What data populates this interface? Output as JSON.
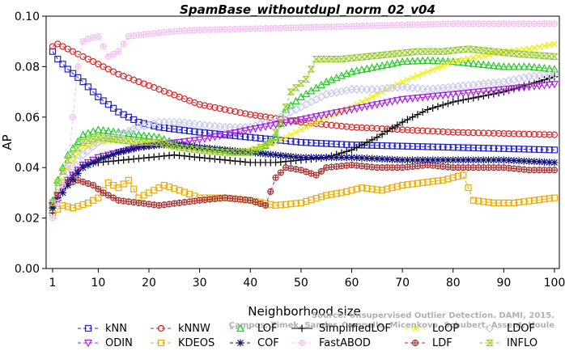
{
  "chart_data": {
    "type": "line",
    "title": "SpamBase_withoutdupl_norm_02_v04",
    "xlabel": "Neighborhood size",
    "ylabel": "AP",
    "xlim": [
      1,
      100
    ],
    "ylim": [
      0,
      0.1
    ],
    "x_ticks": [
      1,
      10,
      20,
      30,
      40,
      50,
      60,
      70,
      80,
      90,
      100
    ],
    "y_ticks": [
      0.0,
      0.02,
      0.04,
      0.06,
      0.08,
      0.1
    ],
    "y_tick_labels": [
      "0.00",
      "0.02",
      "0.04",
      "0.06",
      "0.08",
      "0.10"
    ],
    "grid": false,
    "legend_position": "bottom",
    "watermark_lines": [
      "Source: Unsupervised Outlier Detection. DAMI, 2015.",
      "Campos, Zimek, Sander, Campello, Micenkova, Schubert, Assent, Houle"
    ],
    "series": [
      {
        "name": "kNN",
        "color": "#2222cc",
        "marker": "square",
        "style": "dashed",
        "points": [
          [
            1,
            0.086
          ],
          [
            2,
            0.083
          ],
          [
            4,
            0.079
          ],
          [
            7,
            0.074
          ],
          [
            10,
            0.068
          ],
          [
            14,
            0.062
          ],
          [
            18,
            0.058
          ],
          [
            22,
            0.056
          ],
          [
            26,
            0.055
          ],
          [
            30,
            0.054
          ],
          [
            35,
            0.053
          ],
          [
            40,
            0.052
          ],
          [
            45,
            0.051
          ],
          [
            50,
            0.05
          ],
          [
            55,
            0.0495
          ],
          [
            60,
            0.049
          ],
          [
            70,
            0.0485
          ],
          [
            80,
            0.048
          ],
          [
            90,
            0.0475
          ],
          [
            100,
            0.047
          ]
        ]
      },
      {
        "name": "kNNW",
        "color": "#dd2222",
        "marker": "circle",
        "style": "dashed",
        "points": [
          [
            1,
            0.088
          ],
          [
            2,
            0.089
          ],
          [
            4,
            0.087
          ],
          [
            7,
            0.084
          ],
          [
            10,
            0.081
          ],
          [
            14,
            0.077
          ],
          [
            18,
            0.074
          ],
          [
            22,
            0.071
          ],
          [
            26,
            0.068
          ],
          [
            30,
            0.065
          ],
          [
            35,
            0.063
          ],
          [
            40,
            0.061
          ],
          [
            45,
            0.0595
          ],
          [
            50,
            0.058
          ],
          [
            55,
            0.057
          ],
          [
            60,
            0.056
          ],
          [
            70,
            0.055
          ],
          [
            80,
            0.054
          ],
          [
            90,
            0.0535
          ],
          [
            100,
            0.053
          ]
        ]
      },
      {
        "name": "LOF",
        "color": "#22cc22",
        "marker": "triangle",
        "style": "dashed",
        "points": [
          [
            1,
            0.027
          ],
          [
            2,
            0.035
          ],
          [
            4,
            0.045
          ],
          [
            7,
            0.053
          ],
          [
            10,
            0.055
          ],
          [
            14,
            0.054
          ],
          [
            18,
            0.053
          ],
          [
            22,
            0.052
          ],
          [
            26,
            0.049
          ],
          [
            30,
            0.048
          ],
          [
            34,
            0.047
          ],
          [
            38,
            0.046
          ],
          [
            42,
            0.047
          ],
          [
            45,
            0.052
          ],
          [
            47,
            0.063
          ],
          [
            50,
            0.068
          ],
          [
            55,
            0.074
          ],
          [
            60,
            0.078
          ],
          [
            65,
            0.08
          ],
          [
            70,
            0.082
          ],
          [
            75,
            0.0825
          ],
          [
            80,
            0.082
          ],
          [
            85,
            0.081
          ],
          [
            90,
            0.08
          ],
          [
            95,
            0.08
          ],
          [
            100,
            0.079
          ]
        ]
      },
      {
        "name": "SimplifiedLOF",
        "color": "#000000",
        "marker": "plus",
        "style": "solid",
        "points": [
          [
            1,
            0.022
          ],
          [
            2,
            0.028
          ],
          [
            4,
            0.035
          ],
          [
            7,
            0.041
          ],
          [
            10,
            0.042
          ],
          [
            15,
            0.043
          ],
          [
            20,
            0.044
          ],
          [
            25,
            0.045
          ],
          [
            30,
            0.044
          ],
          [
            35,
            0.043
          ],
          [
            40,
            0.042
          ],
          [
            45,
            0.042
          ],
          [
            50,
            0.043
          ],
          [
            55,
            0.044
          ],
          [
            60,
            0.047
          ],
          [
            65,
            0.052
          ],
          [
            70,
            0.058
          ],
          [
            75,
            0.063
          ],
          [
            80,
            0.066
          ],
          [
            85,
            0.068
          ],
          [
            90,
            0.07
          ],
          [
            95,
            0.073
          ],
          [
            100,
            0.076
          ]
        ]
      },
      {
        "name": "LoOP",
        "color": "#eeee00",
        "marker": "x",
        "style": "dashed",
        "points": [
          [
            1,
            0.025
          ],
          [
            2,
            0.03
          ],
          [
            4,
            0.04
          ],
          [
            7,
            0.048
          ],
          [
            10,
            0.05
          ],
          [
            14,
            0.051
          ],
          [
            18,
            0.05
          ],
          [
            22,
            0.049
          ],
          [
            26,
            0.048
          ],
          [
            30,
            0.047
          ],
          [
            35,
            0.046
          ],
          [
            40,
            0.047
          ],
          [
            45,
            0.05
          ],
          [
            50,
            0.055
          ],
          [
            55,
            0.06
          ],
          [
            60,
            0.064
          ],
          [
            65,
            0.069
          ],
          [
            70,
            0.074
          ],
          [
            75,
            0.078
          ],
          [
            80,
            0.082
          ],
          [
            85,
            0.084
          ],
          [
            90,
            0.086
          ],
          [
            95,
            0.087
          ],
          [
            100,
            0.089
          ]
        ]
      },
      {
        "name": "LDOF",
        "color": "#c8c8f0",
        "marker": "diamond",
        "style": "dashed",
        "points": [
          [
            1,
            0.024
          ],
          [
            2,
            0.03
          ],
          [
            4,
            0.038
          ],
          [
            7,
            0.045
          ],
          [
            10,
            0.05
          ],
          [
            14,
            0.053
          ],
          [
            18,
            0.056
          ],
          [
            22,
            0.058
          ],
          [
            26,
            0.058
          ],
          [
            30,
            0.057
          ],
          [
            35,
            0.056
          ],
          [
            40,
            0.056
          ],
          [
            45,
            0.059
          ],
          [
            50,
            0.064
          ],
          [
            55,
            0.069
          ],
          [
            60,
            0.071
          ],
          [
            65,
            0.071
          ],
          [
            70,
            0.072
          ],
          [
            75,
            0.071
          ],
          [
            80,
            0.072
          ],
          [
            85,
            0.073
          ],
          [
            90,
            0.074
          ],
          [
            95,
            0.076
          ],
          [
            100,
            0.077
          ]
        ]
      },
      {
        "name": "ODIN",
        "color": "#aa22dd",
        "marker": "triangle-down",
        "style": "dashed",
        "points": [
          [
            1,
            0.025
          ],
          [
            2,
            0.029
          ],
          [
            4,
            0.035
          ],
          [
            7,
            0.041
          ],
          [
            10,
            0.044
          ],
          [
            14,
            0.046
          ],
          [
            18,
            0.048
          ],
          [
            22,
            0.049
          ],
          [
            26,
            0.05
          ],
          [
            30,
            0.051
          ],
          [
            35,
            0.053
          ],
          [
            40,
            0.055
          ],
          [
            45,
            0.057
          ],
          [
            50,
            0.059
          ],
          [
            55,
            0.061
          ],
          [
            60,
            0.063
          ],
          [
            65,
            0.065
          ],
          [
            70,
            0.067
          ],
          [
            75,
            0.068
          ],
          [
            80,
            0.069
          ],
          [
            85,
            0.07
          ],
          [
            90,
            0.071
          ],
          [
            95,
            0.072
          ],
          [
            100,
            0.073
          ]
        ]
      },
      {
        "name": "KDEOS",
        "color": "#eeaa00",
        "marker": "square",
        "style": "dashed",
        "points": [
          [
            1,
            0.022
          ],
          [
            3,
            0.025
          ],
          [
            5,
            0.024
          ],
          [
            8,
            0.026
          ],
          [
            10,
            0.028
          ],
          [
            12,
            0.034
          ],
          [
            14,
            0.032
          ],
          [
            16,
            0.035
          ],
          [
            18,
            0.028
          ],
          [
            20,
            0.03
          ],
          [
            23,
            0.033
          ],
          [
            26,
            0.031
          ],
          [
            30,
            0.028
          ],
          [
            35,
            0.028
          ],
          [
            40,
            0.027
          ],
          [
            45,
            0.025
          ],
          [
            50,
            0.026
          ],
          [
            55,
            0.029
          ],
          [
            58,
            0.03
          ],
          [
            62,
            0.032
          ],
          [
            66,
            0.031
          ],
          [
            70,
            0.033
          ],
          [
            74,
            0.034
          ],
          [
            78,
            0.035
          ],
          [
            82,
            0.037
          ],
          [
            84,
            0.027
          ],
          [
            88,
            0.026
          ],
          [
            92,
            0.026
          ],
          [
            96,
            0.027
          ],
          [
            100,
            0.028
          ]
        ]
      },
      {
        "name": "LDF",
        "color": "#aa3333",
        "marker": "circle-plus",
        "style": "dashed",
        "points": [
          [
            1,
            0.025
          ],
          [
            3,
            0.033
          ],
          [
            6,
            0.035
          ],
          [
            9,
            0.033
          ],
          [
            11,
            0.03
          ],
          [
            14,
            0.027
          ],
          [
            18,
            0.026
          ],
          [
            22,
            0.025
          ],
          [
            26,
            0.026
          ],
          [
            30,
            0.027
          ],
          [
            35,
            0.028
          ],
          [
            40,
            0.027
          ],
          [
            43,
            0.025
          ],
          [
            45,
            0.036
          ],
          [
            47,
            0.04
          ],
          [
            50,
            0.039
          ],
          [
            53,
            0.037
          ],
          [
            55,
            0.04
          ],
          [
            60,
            0.041
          ],
          [
            65,
            0.04
          ],
          [
            70,
            0.04
          ],
          [
            75,
            0.041
          ],
          [
            80,
            0.04
          ],
          [
            85,
            0.04
          ],
          [
            90,
            0.04
          ],
          [
            95,
            0.039
          ],
          [
            100,
            0.039
          ]
        ]
      },
      {
        "name": "COF",
        "color": "#111177",
        "marker": "asterisk",
        "style": "dashed",
        "points": [
          [
            1,
            0.024
          ],
          [
            2,
            0.027
          ],
          [
            4,
            0.033
          ],
          [
            7,
            0.04
          ],
          [
            10,
            0.043
          ],
          [
            14,
            0.046
          ],
          [
            18,
            0.048
          ],
          [
            22,
            0.049
          ],
          [
            26,
            0.049
          ],
          [
            30,
            0.048
          ],
          [
            35,
            0.047
          ],
          [
            40,
            0.046
          ],
          [
            45,
            0.045
          ],
          [
            50,
            0.044
          ],
          [
            55,
            0.044
          ],
          [
            60,
            0.044
          ],
          [
            70,
            0.043
          ],
          [
            80,
            0.043
          ],
          [
            90,
            0.043
          ],
          [
            100,
            0.042
          ]
        ]
      },
      {
        "name": "FastABOD",
        "color": "#f4c0f4",
        "marker": "circle-plus",
        "style": "dashed",
        "points": [
          [
            1,
            0.02
          ],
          [
            2,
            0.026
          ],
          [
            4,
            0.04
          ],
          [
            6,
            0.08
          ],
          [
            7,
            0.09
          ],
          [
            8,
            0.091
          ],
          [
            10,
            0.092
          ],
          [
            12,
            0.084
          ],
          [
            14,
            0.086
          ],
          [
            16,
            0.092
          ],
          [
            20,
            0.093
          ],
          [
            25,
            0.094
          ],
          [
            30,
            0.0945
          ],
          [
            40,
            0.095
          ],
          [
            50,
            0.0955
          ],
          [
            60,
            0.096
          ],
          [
            70,
            0.0965
          ],
          [
            80,
            0.097
          ],
          [
            90,
            0.097
          ],
          [
            100,
            0.097
          ]
        ]
      },
      {
        "name": "INFLO",
        "color": "#99cc33",
        "marker": "hourglass",
        "style": "dashed",
        "points": [
          [
            1,
            0.026
          ],
          [
            2,
            0.034
          ],
          [
            4,
            0.043
          ],
          [
            7,
            0.05
          ],
          [
            10,
            0.052
          ],
          [
            14,
            0.051
          ],
          [
            18,
            0.05
          ],
          [
            22,
            0.05
          ],
          [
            26,
            0.048
          ],
          [
            30,
            0.047
          ],
          [
            35,
            0.046
          ],
          [
            40,
            0.046
          ],
          [
            44,
            0.05
          ],
          [
            46,
            0.058
          ],
          [
            48,
            0.07
          ],
          [
            51,
            0.075
          ],
          [
            53,
            0.083
          ],
          [
            58,
            0.083
          ],
          [
            63,
            0.084
          ],
          [
            68,
            0.085
          ],
          [
            73,
            0.086
          ],
          [
            78,
            0.086
          ],
          [
            83,
            0.087
          ],
          [
            88,
            0.086
          ],
          [
            93,
            0.085
          ],
          [
            100,
            0.084
          ]
        ]
      }
    ]
  }
}
